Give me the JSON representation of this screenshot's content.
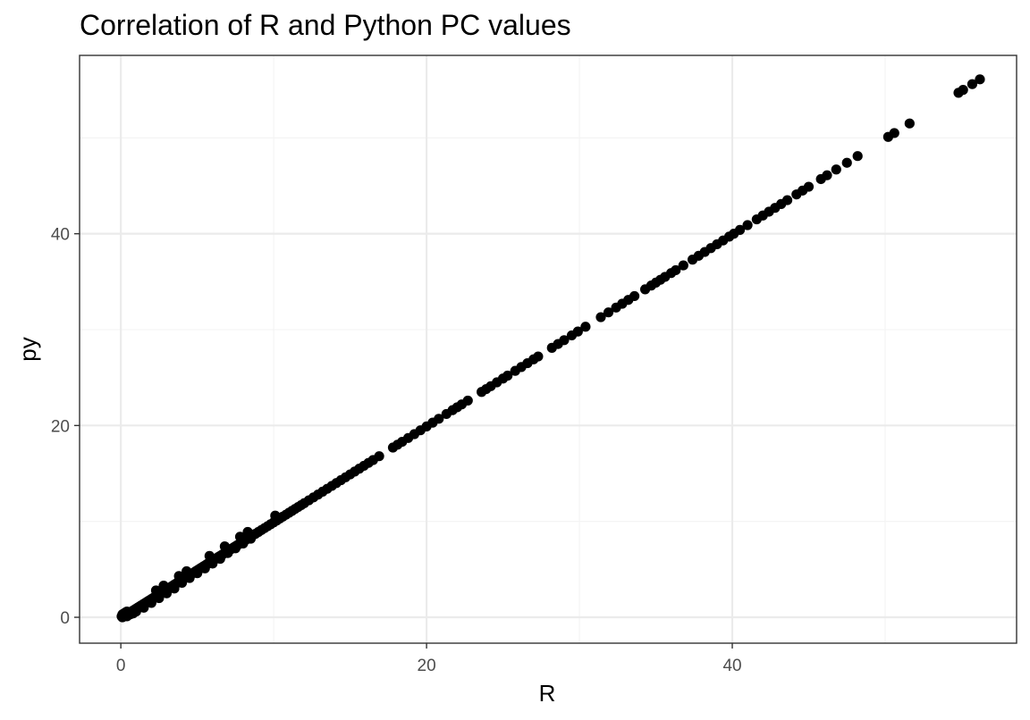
{
  "chart_data": {
    "type": "scatter",
    "title": "Correlation of R and Python PC values",
    "xlabel": "R",
    "ylabel": "py",
    "xlim": [
      -2.7,
      58.6
    ],
    "ylim": [
      -2.7,
      58.6
    ],
    "x_ticks": [
      0,
      20,
      40
    ],
    "y_ticks": [
      0,
      20,
      40
    ],
    "x_tick_labels": [
      "0",
      "20",
      "40"
    ],
    "y_tick_labels": [
      "0",
      "20",
      "40"
    ],
    "x_minor_ticks": [
      10,
      30,
      50
    ],
    "y_minor_ticks": [
      10,
      30,
      50
    ],
    "grid": true,
    "legend": "none",
    "point_color": "#000000",
    "series": [
      {
        "x": [
          0.05,
          0.1,
          0.15,
          0.2,
          0.25,
          0.3,
          0.35,
          0.4,
          0.45,
          0.5,
          0.1,
          0.2,
          0.3,
          0.4,
          0.5,
          0.6,
          0.7,
          0.8,
          0.9,
          1.0,
          1.1,
          1.2,
          1.3,
          1.4,
          1.5,
          1.6,
          1.7,
          1.8,
          1.9,
          2.0,
          2.1,
          2.2,
          2.3,
          2.4,
          2.5,
          2.6,
          2.7,
          2.8,
          2.9,
          3.0,
          3.1,
          3.2,
          3.3,
          3.4,
          3.5,
          3.6,
          3.7,
          3.8,
          3.9,
          4.0,
          4.1,
          4.2,
          4.3,
          4.4,
          4.5,
          4.6,
          4.7,
          4.8,
          4.9,
          5.0,
          5.1,
          5.2,
          5.3,
          5.4,
          5.5,
          5.6,
          5.7,
          5.8,
          5.9,
          6.0,
          6.1,
          6.2,
          6.3,
          6.4,
          6.5,
          6.6,
          6.7,
          6.8,
          6.9,
          7.0,
          7.1,
          7.2,
          7.3,
          7.4,
          7.5,
          7.6,
          7.7,
          7.8,
          7.9,
          8.0,
          8.1,
          8.2,
          8.3,
          8.4,
          8.5,
          8.6,
          8.8,
          9.0,
          9.2,
          9.4,
          9.6,
          9.8,
          10.0,
          10.2,
          10.4,
          10.6,
          10.8,
          11.0,
          11.2,
          11.4,
          11.6,
          11.8,
          12.0,
          12.3,
          12.6,
          12.9,
          13.2,
          13.5,
          13.8,
          14.1,
          14.4,
          14.7,
          15.0,
          15.3,
          15.6,
          15.9,
          16.2,
          16.5,
          16.9,
          17.8,
          18.1,
          18.4,
          18.8,
          19.2,
          19.6,
          20.0,
          20.4,
          20.8,
          21.3,
          21.7,
          22.0,
          22.3,
          22.7,
          23.6,
          23.9,
          24.2,
          24.6,
          25.0,
          25.3,
          25.8,
          26.2,
          26.6,
          27.0,
          27.3,
          28.2,
          28.6,
          29.0,
          29.5,
          29.9,
          30.4,
          31.4,
          31.9,
          32.4,
          32.8,
          33.2,
          33.6,
          34.3,
          34.7,
          35.0,
          35.3,
          35.6,
          36.0,
          36.3,
          36.8,
          37.4,
          37.8,
          38.2,
          38.6,
          39.0,
          39.4,
          39.8,
          40.1,
          40.5,
          41.0,
          41.6,
          42.0,
          42.4,
          42.8,
          43.2,
          43.6,
          44.2,
          44.6,
          45.0,
          45.8,
          46.2,
          46.8,
          47.5,
          48.2,
          50.2,
          50.6,
          51.6,
          54.8,
          55.1,
          55.7,
          56.2,
          0.4,
          0.6,
          0.8,
          1.0,
          1.5,
          2.0,
          2.5,
          3.0,
          3.5,
          4.0,
          4.5,
          5.0,
          5.5,
          6.0,
          6.5,
          7.0,
          7.5,
          8.0,
          8.5,
          2.3,
          2.8,
          3.8,
          4.3,
          5.8,
          6.8,
          7.8,
          8.3,
          10.1
        ],
        "y": [
          0.1,
          0.3,
          0.2,
          0.4,
          0.2,
          0.5,
          0.3,
          0.6,
          0.4,
          0.5,
          0.0,
          0.1,
          0.2,
          0.3,
          0.4,
          0.5,
          0.6,
          0.7,
          0.8,
          0.9,
          1.0,
          1.1,
          1.2,
          1.3,
          1.4,
          1.5,
          1.6,
          1.7,
          1.8,
          1.9,
          2.0,
          2.1,
          2.2,
          2.3,
          2.4,
          2.5,
          2.6,
          2.7,
          2.8,
          2.9,
          3.0,
          3.1,
          3.2,
          3.3,
          3.4,
          3.5,
          3.6,
          3.7,
          3.8,
          3.9,
          4.0,
          4.1,
          4.2,
          4.3,
          4.4,
          4.5,
          4.6,
          4.7,
          4.8,
          4.9,
          5.0,
          5.1,
          5.2,
          5.3,
          5.4,
          5.5,
          5.6,
          5.7,
          5.8,
          5.9,
          6.0,
          6.1,
          6.2,
          6.3,
          6.4,
          6.5,
          6.6,
          6.7,
          6.8,
          6.9,
          7.0,
          7.1,
          7.2,
          7.3,
          7.4,
          7.5,
          7.6,
          7.7,
          7.8,
          7.9,
          8.0,
          8.1,
          8.2,
          8.3,
          8.4,
          8.5,
          8.7,
          8.9,
          9.1,
          9.3,
          9.5,
          9.7,
          9.9,
          10.1,
          10.3,
          10.5,
          10.7,
          10.9,
          11.1,
          11.3,
          11.5,
          11.7,
          11.9,
          12.2,
          12.5,
          12.8,
          13.1,
          13.4,
          13.7,
          14.0,
          14.3,
          14.6,
          14.9,
          15.2,
          15.5,
          15.8,
          16.1,
          16.4,
          16.8,
          17.7,
          18.0,
          18.3,
          18.7,
          19.1,
          19.5,
          19.9,
          20.3,
          20.7,
          21.2,
          21.6,
          21.9,
          22.2,
          22.6,
          23.5,
          23.8,
          24.1,
          24.5,
          24.9,
          25.2,
          25.7,
          26.1,
          26.5,
          26.9,
          27.2,
          28.1,
          28.5,
          28.9,
          29.4,
          29.8,
          30.3,
          31.3,
          31.8,
          32.3,
          32.7,
          33.1,
          33.5,
          34.2,
          34.6,
          34.9,
          35.2,
          35.5,
          35.9,
          36.2,
          36.7,
          37.3,
          37.7,
          38.1,
          38.5,
          38.9,
          39.3,
          39.7,
          40.0,
          40.4,
          40.9,
          41.5,
          41.9,
          42.3,
          42.7,
          43.1,
          43.5,
          44.1,
          44.5,
          44.9,
          45.7,
          46.1,
          46.7,
          47.4,
          48.1,
          50.1,
          50.5,
          51.5,
          54.7,
          55.0,
          55.6,
          56.1,
          0.1,
          0.3,
          0.4,
          0.6,
          1.0,
          1.5,
          2.0,
          2.5,
          3.0,
          3.6,
          4.1,
          4.6,
          5.1,
          5.6,
          6.1,
          6.7,
          7.2,
          7.7,
          8.2,
          2.8,
          3.3,
          4.3,
          4.8,
          6.4,
          7.4,
          8.4,
          8.9,
          10.6
        ]
      }
    ]
  }
}
